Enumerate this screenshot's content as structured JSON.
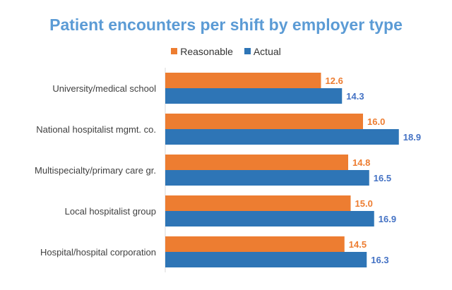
{
  "chart_data": {
    "type": "bar",
    "orientation": "horizontal",
    "title": "Patient encounters per shift by employer type",
    "categories": [
      "University/medical school",
      "National hospitalist mgmt. co.",
      "Multispecialty/primary care gr.",
      "Local hospitalist group",
      "Hospital/hospital corporation"
    ],
    "series": [
      {
        "name": "Reasonable",
        "values": [
          12.6,
          16.0,
          14.8,
          15.0,
          14.5
        ],
        "color": "#ED7D31",
        "label_color": "#ED7D31"
      },
      {
        "name": "Actual",
        "values": [
          14.3,
          18.9,
          16.5,
          16.9,
          16.3
        ],
        "color": "#2E75B6",
        "label_color": "#4472C4"
      }
    ],
    "xlim": [
      0,
      20
    ],
    "grid": false,
    "legend": "top",
    "data_labels": true
  }
}
